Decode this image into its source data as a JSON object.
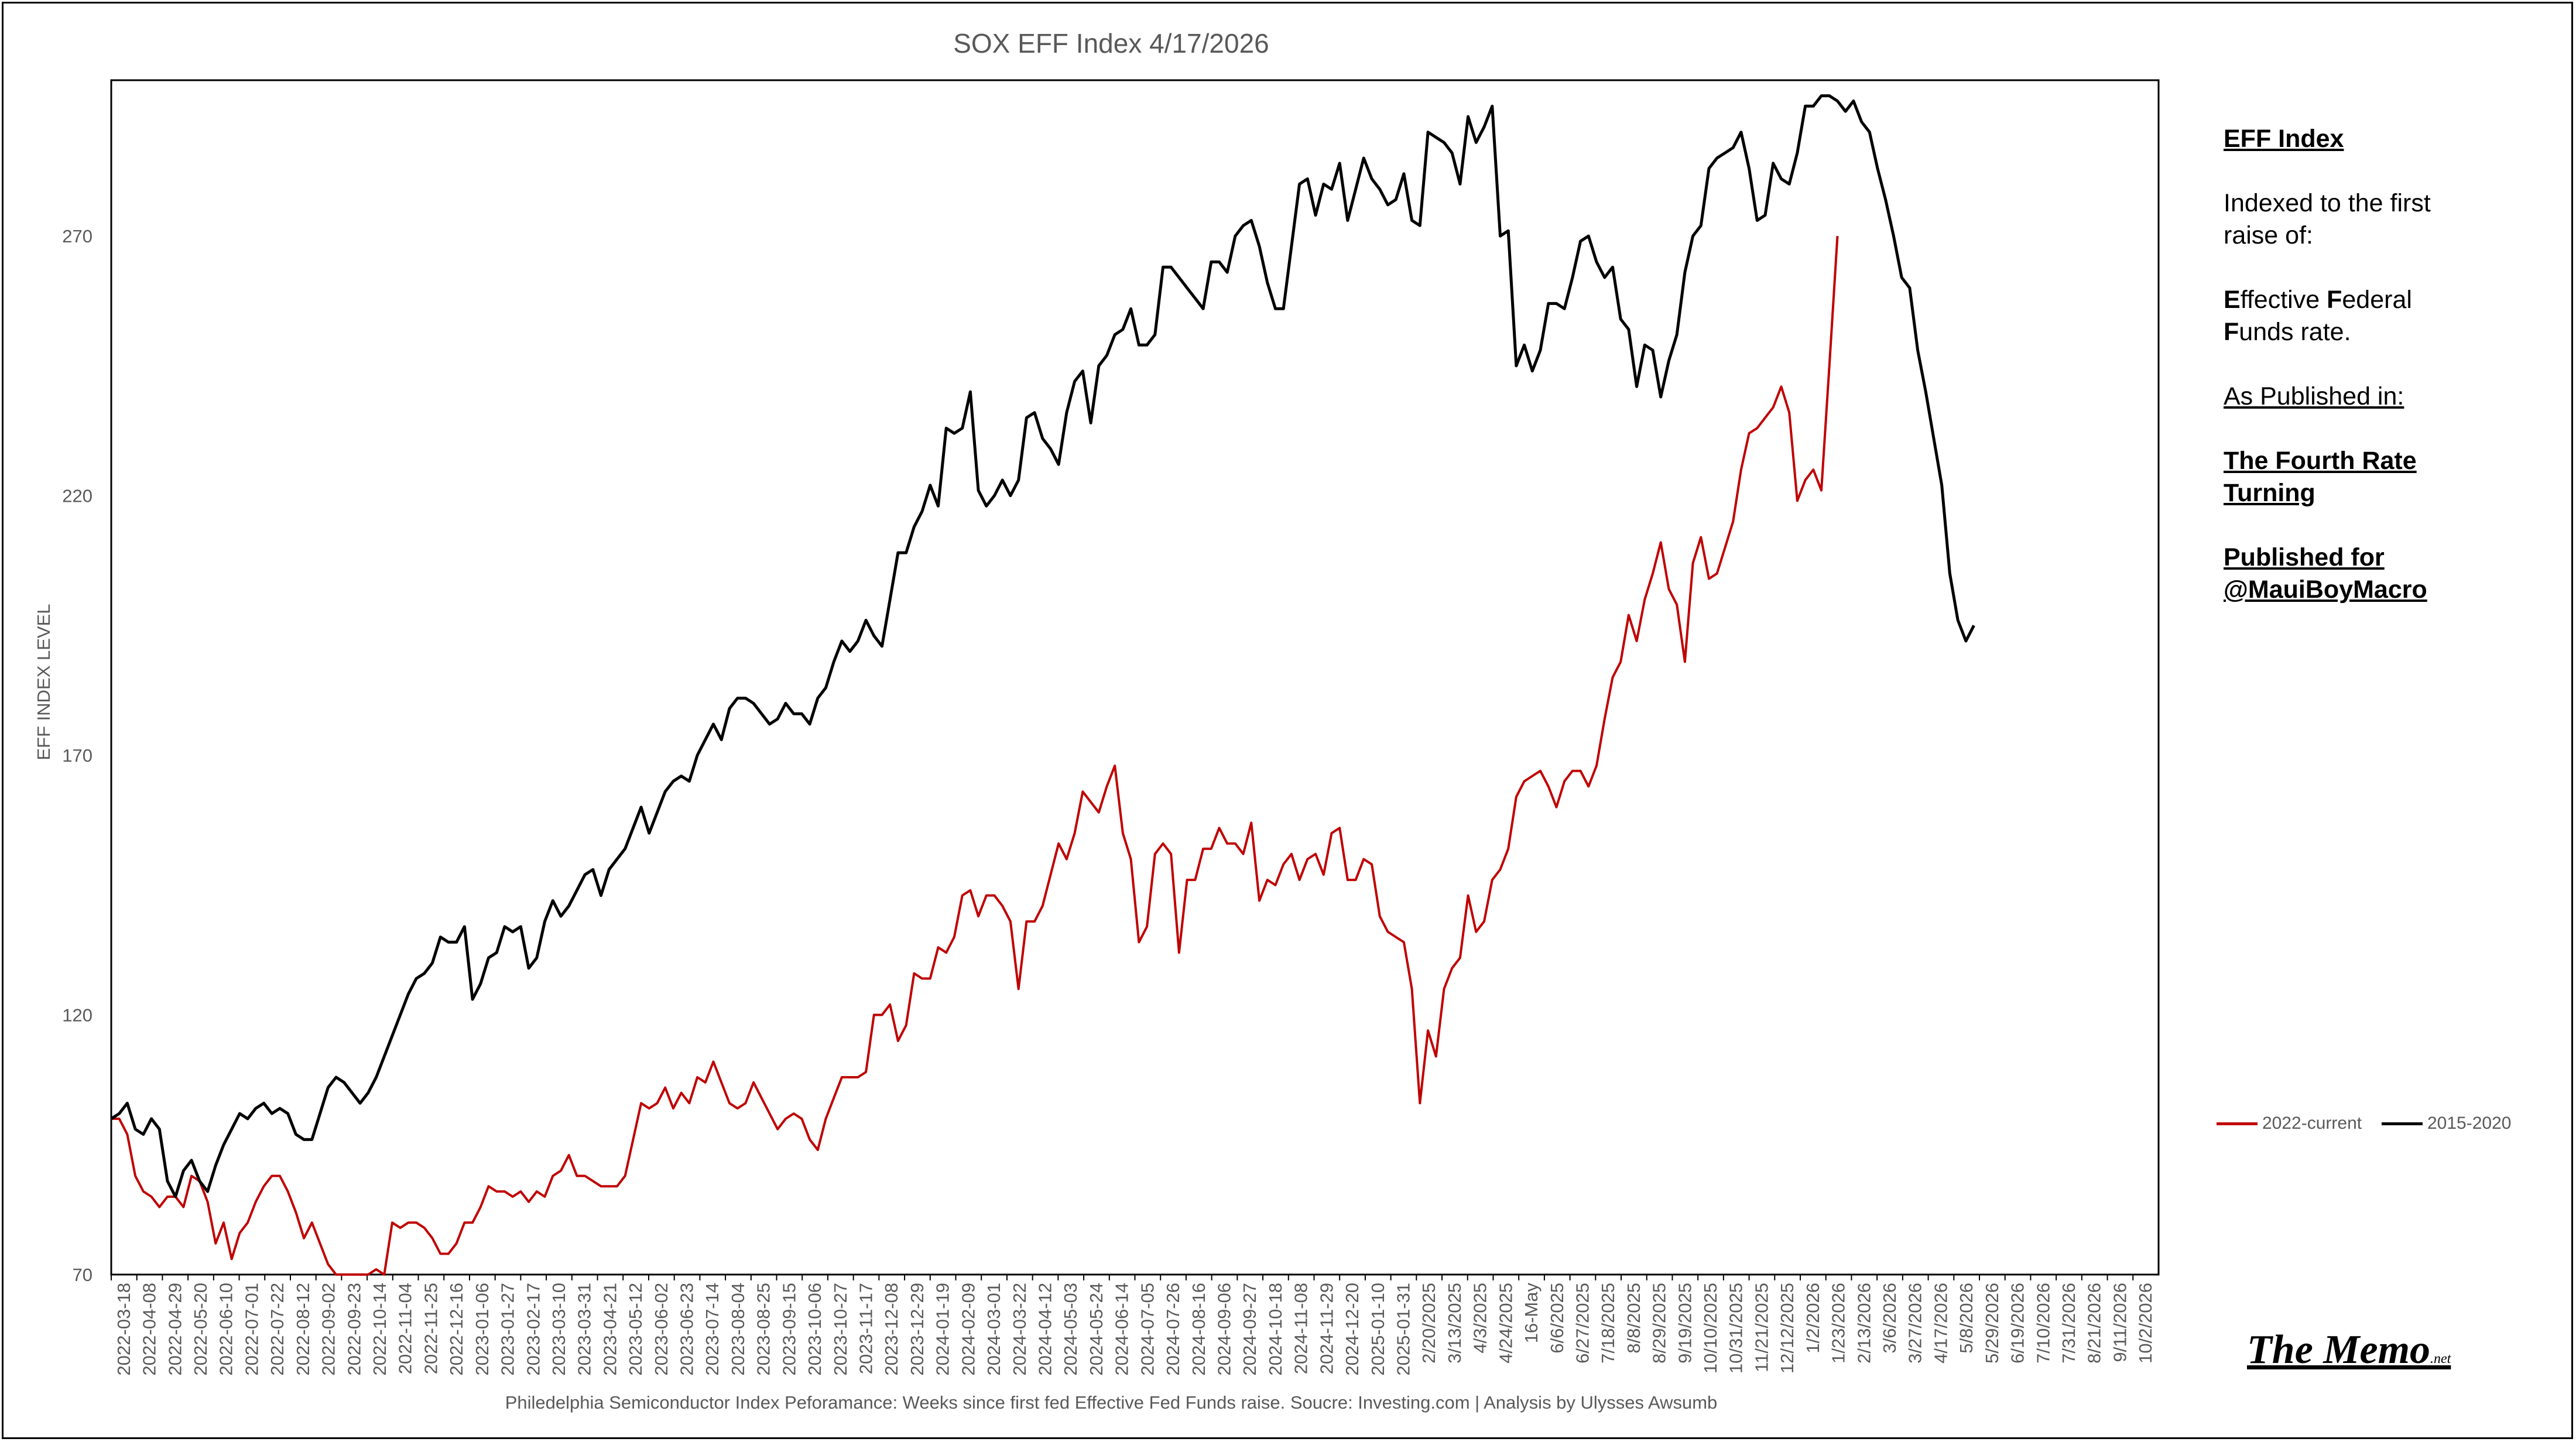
{
  "chart_data": {
    "type": "line",
    "title": "SOX EFF Index    4/17/2026",
    "ylabel": "EFF INDEX LEVEL",
    "xlabel": "",
    "ylim": [
      70,
      300
    ],
    "yticks": [
      70,
      120,
      170,
      220,
      270
    ],
    "grid": false,
    "legend_position": "right",
    "caption": "Philedelphia Semiconductor Index Peforamance: Weeks since first fed Effective Fed Funds raise.   Soucre: Investing.com  |  Analysis by Ulysses Awsumb",
    "x_tick_labels": [
      "2022-03-18",
      "2022-04-08",
      "2022-04-29",
      "2022-05-20",
      "2022-06-10",
      "2022-07-01",
      "2022-07-22",
      "2022-08-12",
      "2022-09-02",
      "2022-09-23",
      "2022-10-14",
      "2022-11-04",
      "2022-11-25",
      "2022-12-16",
      "2023-01-06",
      "2023-01-27",
      "2023-02-17",
      "2023-03-10",
      "2023-03-31",
      "2023-04-21",
      "2023-05-12",
      "2023-06-02",
      "2023-06-23",
      "2023-07-14",
      "2023-08-04",
      "2023-08-25",
      "2023-09-15",
      "2023-10-06",
      "2023-10-27",
      "2023-11-17",
      "2023-12-08",
      "2023-12-29",
      "2024-01-19",
      "2024-02-09",
      "2024-03-01",
      "2024-03-22",
      "2024-04-12",
      "2024-05-03",
      "2024-05-24",
      "2024-06-14",
      "2024-07-05",
      "2024-07-26",
      "2024-08-16",
      "2024-09-06",
      "2024-09-27",
      "2024-10-18",
      "2024-11-08",
      "2024-11-29",
      "2024-12-20",
      "2025-01-10",
      "2025-01-31",
      "2/20/2025",
      "3/13/2025",
      "4/3/2025",
      "4/24/2025",
      "16-May",
      "6/6/2025",
      "6/27/2025",
      "7/18/2025",
      "8/8/2025",
      "8/29/2025",
      "9/19/2025",
      "10/10/2025",
      "10/31/2025",
      "11/21/2025",
      "12/12/2025",
      "1/2/2026",
      "1/23/2026",
      "2/13/2026",
      "3/6/2026",
      "3/27/2026",
      "4/17/2026",
      "5/8/2026",
      "5/29/2026",
      "6/19/2026",
      "7/10/2026",
      "7/31/2026",
      "8/21/2026",
      "9/11/2026",
      "10/2/2026"
    ],
    "series": [
      {
        "name": "2022-current",
        "color": "#c00000",
        "values": [
          100,
          100,
          97,
          89,
          86,
          85,
          83,
          85,
          85,
          83,
          89,
          88,
          84,
          76,
          80,
          73,
          78,
          80,
          84,
          87,
          89,
          89,
          86,
          82,
          77,
          80,
          76,
          72,
          69,
          66,
          66,
          67,
          69,
          71,
          70,
          80,
          79,
          80,
          80,
          79,
          77,
          74,
          74,
          76,
          80,
          80,
          83,
          87,
          86,
          86,
          85,
          86,
          84,
          86,
          85,
          89,
          90,
          93,
          89,
          89,
          88,
          87,
          87,
          87,
          89,
          96,
          103,
          102,
          103,
          106,
          102,
          105,
          103,
          108,
          107,
          111,
          107,
          103,
          102,
          103,
          107,
          104,
          101,
          98,
          100,
          101,
          100,
          96,
          94,
          100,
          104,
          108,
          108,
          108,
          109,
          120,
          120,
          122,
          115,
          118,
          128,
          127,
          127,
          133,
          132,
          135,
          143,
          144,
          139,
          143,
          143,
          141,
          138,
          125,
          138,
          138,
          141,
          147,
          153,
          150,
          155,
          163,
          161,
          159,
          164,
          168,
          155,
          150,
          134,
          137,
          151,
          153,
          151,
          132,
          146,
          146,
          152,
          152,
          156,
          153,
          153,
          151,
          157,
          142,
          146,
          145,
          149,
          151,
          146,
          150,
          151,
          147,
          155,
          156,
          146,
          146,
          150,
          149,
          139,
          136,
          135,
          134,
          125,
          103,
          117,
          112,
          125,
          129,
          131,
          143,
          136,
          138,
          146,
          148,
          152,
          162,
          165,
          166,
          167,
          164,
          160,
          165,
          167,
          167,
          164,
          168,
          177,
          185,
          188,
          197,
          192,
          200,
          205,
          211,
          202,
          199,
          188,
          207,
          212,
          204,
          205,
          210,
          215,
          225,
          232,
          233,
          235,
          237,
          241,
          236,
          219,
          223,
          225,
          221,
          245,
          270
        ]
      },
      {
        "name": "2015-2020",
        "color": "#000000",
        "values": [
          100,
          101,
          103,
          98,
          97,
          100,
          98,
          88,
          85,
          90,
          92,
          88,
          86,
          91,
          95,
          98,
          101,
          100,
          102,
          103,
          101,
          102,
          101,
          97,
          96,
          96,
          101,
          106,
          108,
          107,
          105,
          103,
          105,
          108,
          112,
          116,
          120,
          124,
          127,
          128,
          130,
          135,
          134,
          134,
          137,
          123,
          126,
          131,
          132,
          137,
          136,
          137,
          129,
          131,
          138,
          142,
          139,
          141,
          144,
          147,
          148,
          143,
          148,
          150,
          152,
          156,
          160,
          155,
          159,
          163,
          165,
          166,
          165,
          170,
          173,
          176,
          173,
          179,
          181,
          181,
          180,
          178,
          176,
          177,
          180,
          178,
          178,
          176,
          181,
          183,
          188,
          192,
          190,
          192,
          196,
          193,
          191,
          200,
          209,
          209,
          214,
          217,
          222,
          218,
          233,
          232,
          233,
          240,
          221,
          218,
          220,
          223,
          220,
          223,
          235,
          236,
          231,
          229,
          226,
          236,
          242,
          244,
          234,
          245,
          247,
          251,
          252,
          256,
          249,
          249,
          251,
          264,
          264,
          262,
          260,
          258,
          256,
          265,
          265,
          263,
          270,
          272,
          273,
          268,
          261,
          256,
          256,
          268,
          280,
          281,
          274,
          280,
          279,
          284,
          273,
          279,
          285,
          281,
          279,
          276,
          277,
          282,
          273,
          272,
          290,
          289,
          288,
          286,
          280,
          293,
          288,
          291,
          295,
          270,
          271,
          245,
          249,
          244,
          248,
          257,
          257,
          256,
          262,
          269,
          270,
          265,
          262,
          264,
          254,
          252,
          241,
          249,
          248,
          239,
          246,
          251,
          263,
          270,
          272,
          283,
          285,
          286,
          287,
          290,
          283,
          273,
          274,
          284,
          281,
          280,
          286,
          295,
          295,
          297,
          297,
          296,
          294,
          296,
          292,
          290,
          283,
          277,
          270,
          262,
          260,
          248,
          240,
          231,
          222,
          205,
          196,
          192,
          195
        ]
      }
    ]
  },
  "sidebar": {
    "heading": "EFF Index",
    "line1a": "Indexed to the first",
    "line1b": "raise of:",
    "eff_e": "E",
    "eff_rest1": "ffective ",
    "eff_f": "F",
    "eff_rest2": "ederal",
    "eff_f2": "F",
    "eff_rest3": "unds rate.",
    "published_in": "As Published in:",
    "book_line1": "The Fourth Rate",
    "book_line2": "Turning",
    "pub_for_1": "Published for",
    "pub_for_2": "@MauiBoyMacro"
  },
  "legend": {
    "item1": "2022-current",
    "item2": "2015-2020"
  },
  "brand": {
    "logo_text": "The Memo",
    "logo_suffix": ".net"
  }
}
